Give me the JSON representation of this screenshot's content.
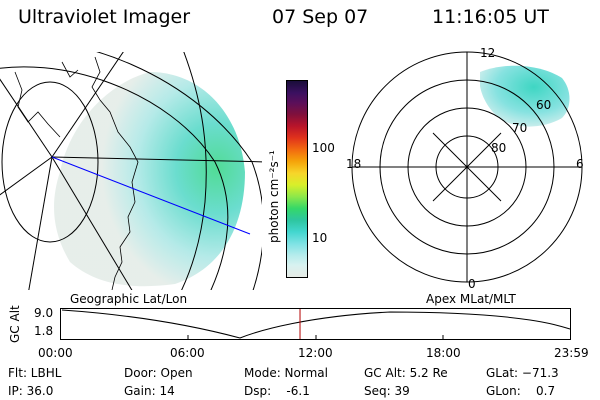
{
  "header": {
    "instrument": "Ultraviolet Imager",
    "date": "07 Sep 07",
    "time": "11:16:05 UT"
  },
  "colorbar": {
    "unit_label": "photon cm⁻²s⁻¹",
    "ticks": [
      "100",
      "10"
    ],
    "colors": [
      "#1a0d3a",
      "#3b1060",
      "#5a0f5a",
      "#80103c",
      "#b8142a",
      "#e0321c",
      "#f26a10",
      "#f5a30a",
      "#f7d52a",
      "#d8ef2a",
      "#8de84a",
      "#35d868",
      "#2ec6a0",
      "#43d6cf",
      "#7ee2e4",
      "#b6ecec",
      "#d8f2f0",
      "#e6ebe6"
    ]
  },
  "geo_panel": {
    "label": "Geographic Lat/Lon"
  },
  "polar_panel": {
    "label": "Apex  MLat/MLT",
    "mlt_labels": {
      "top": "12",
      "left": "18",
      "right": "6",
      "bottom": "0"
    },
    "lat_labels": [
      "60",
      "70",
      "80"
    ]
  },
  "timeline": {
    "ylabel": "GC Alt",
    "yticks": [
      "9.0",
      "1.8"
    ],
    "xticks": [
      "00:00",
      "06:00",
      "12:00",
      "18:00",
      "23:59"
    ],
    "current_time_hours": 11.27
  },
  "status": {
    "flt": "Flt: LBHL",
    "ip": "IP: 36.0",
    "door": "Door: Open",
    "gain": "Gain: 14",
    "mode": "Mode: Normal",
    "dsp": "Dsp:    -6.1",
    "gc_alt": "GC Alt: 5.2 Re",
    "seq": "Seq: 39",
    "glat": "GLat: −71.3",
    "glon": "GLon:    0.7"
  }
}
